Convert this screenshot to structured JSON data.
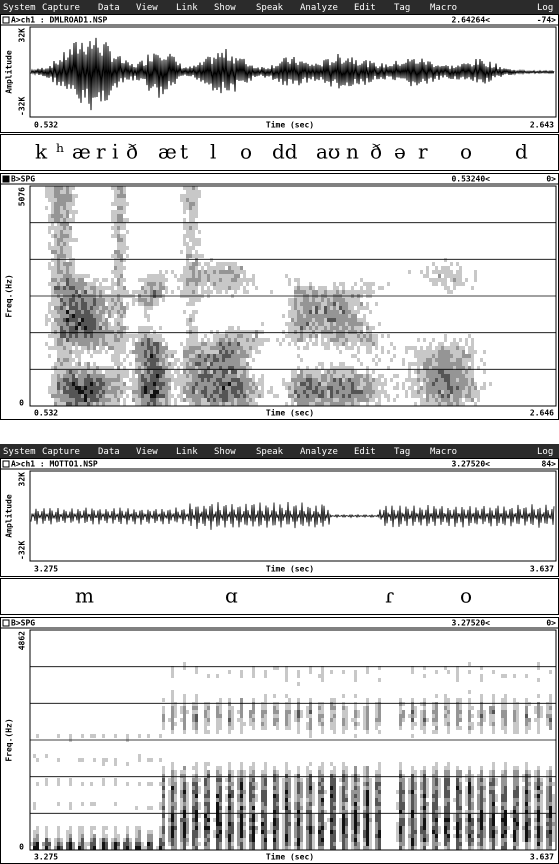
{
  "menu": [
    "System",
    "Capture",
    "Data",
    "View",
    "Link",
    "Show",
    "Speak",
    "Analyze",
    "Edit",
    "Tag",
    "Macro",
    "Log"
  ],
  "screens": [
    {
      "waveform": {
        "label": "A>ch1 : DMLROAD1.NSP",
        "cursor": "2.64264<",
        "value": "-74>",
        "y_label": "Amplitude",
        "y_max": "32K",
        "y_min": "-32K",
        "x_start": "0.532",
        "x_label": "Time (sec)",
        "x_end": "2.643"
      },
      "transcription": [
        "k",
        "ʰ",
        "æ",
        "r",
        "i",
        "ð",
        "æ",
        "t",
        "l",
        "o",
        "dd",
        "aʊ",
        "n",
        "ð",
        "ə",
        "r",
        "o",
        "d"
      ],
      "spectrogram": {
        "label": "B>SPG",
        "cursor": "0.53240<",
        "value": "0>",
        "y_label": "Freq.(Hz)",
        "y_max": "5076",
        "y_min": "0",
        "x_start": "0.532",
        "x_label": "Time (sec)",
        "x_end": "2.646"
      }
    },
    {
      "waveform": {
        "label": "A>ch1 : MOTTO1.NSP",
        "cursor": "3.27520<",
        "value": "84>",
        "y_label": "Amplitude",
        "y_max": "32K",
        "y_min": "-32K",
        "x_start": "3.275",
        "x_label": "Time (sec)",
        "x_end": "3.637"
      },
      "transcription": [
        "m",
        "ɑ",
        "ɾ",
        "o"
      ],
      "spectrogram": {
        "label": "B>SPG",
        "cursor": "3.27520<",
        "value": "0>",
        "y_label": "Freq.(Hz)",
        "y_max": "4862",
        "y_min": "0",
        "x_start": "3.275",
        "x_label": "Time (sec)",
        "x_end": "3.637"
      }
    }
  ]
}
